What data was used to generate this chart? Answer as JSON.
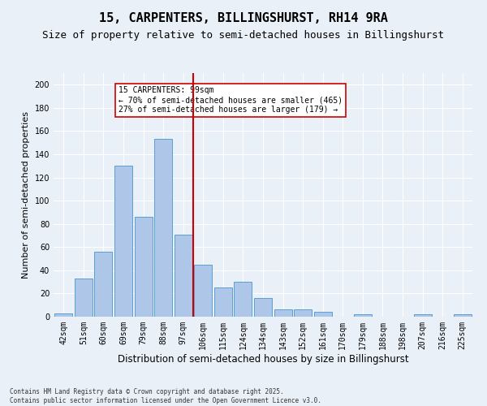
{
  "title": "15, CARPENTERS, BILLINGSHURST, RH14 9RA",
  "subtitle": "Size of property relative to semi-detached houses in Billingshurst",
  "xlabel": "Distribution of semi-detached houses by size in Billingshurst",
  "ylabel": "Number of semi-detached properties",
  "footer": "Contains HM Land Registry data © Crown copyright and database right 2025.\nContains public sector information licensed under the Open Government Licence v3.0.",
  "categories": [
    "42sqm",
    "51sqm",
    "60sqm",
    "69sqm",
    "79sqm",
    "88sqm",
    "97sqm",
    "106sqm",
    "115sqm",
    "124sqm",
    "134sqm",
    "143sqm",
    "152sqm",
    "161sqm",
    "170sqm",
    "179sqm",
    "188sqm",
    "198sqm",
    "207sqm",
    "216sqm",
    "225sqm"
  ],
  "values": [
    3,
    33,
    56,
    130,
    86,
    153,
    71,
    45,
    25,
    30,
    16,
    6,
    6,
    4,
    0,
    2,
    0,
    0,
    2,
    0,
    2
  ],
  "bar_color": "#aec6e8",
  "bar_edge_color": "#5a9fd4",
  "vline_x": 6.5,
  "vline_color": "#cc0000",
  "legend_text_line1": "15 CARPENTERS: 99sqm",
  "legend_text_line2": "← 70% of semi-detached houses are smaller (465)",
  "legend_text_line3": "27% of semi-detached houses are larger (179) →",
  "legend_box_color": "#ffffff",
  "legend_box_edge_color": "#cc0000",
  "ylim": [
    0,
    210
  ],
  "yticks": [
    0,
    20,
    40,
    60,
    80,
    100,
    120,
    140,
    160,
    180,
    200
  ],
  "background_color": "#eaf0f8",
  "grid_color": "#ffffff",
  "title_fontsize": 11,
  "subtitle_fontsize": 9,
  "tick_fontsize": 7,
  "ylabel_fontsize": 8,
  "xlabel_fontsize": 8.5,
  "footer_fontsize": 5.5,
  "legend_fontsize": 7
}
